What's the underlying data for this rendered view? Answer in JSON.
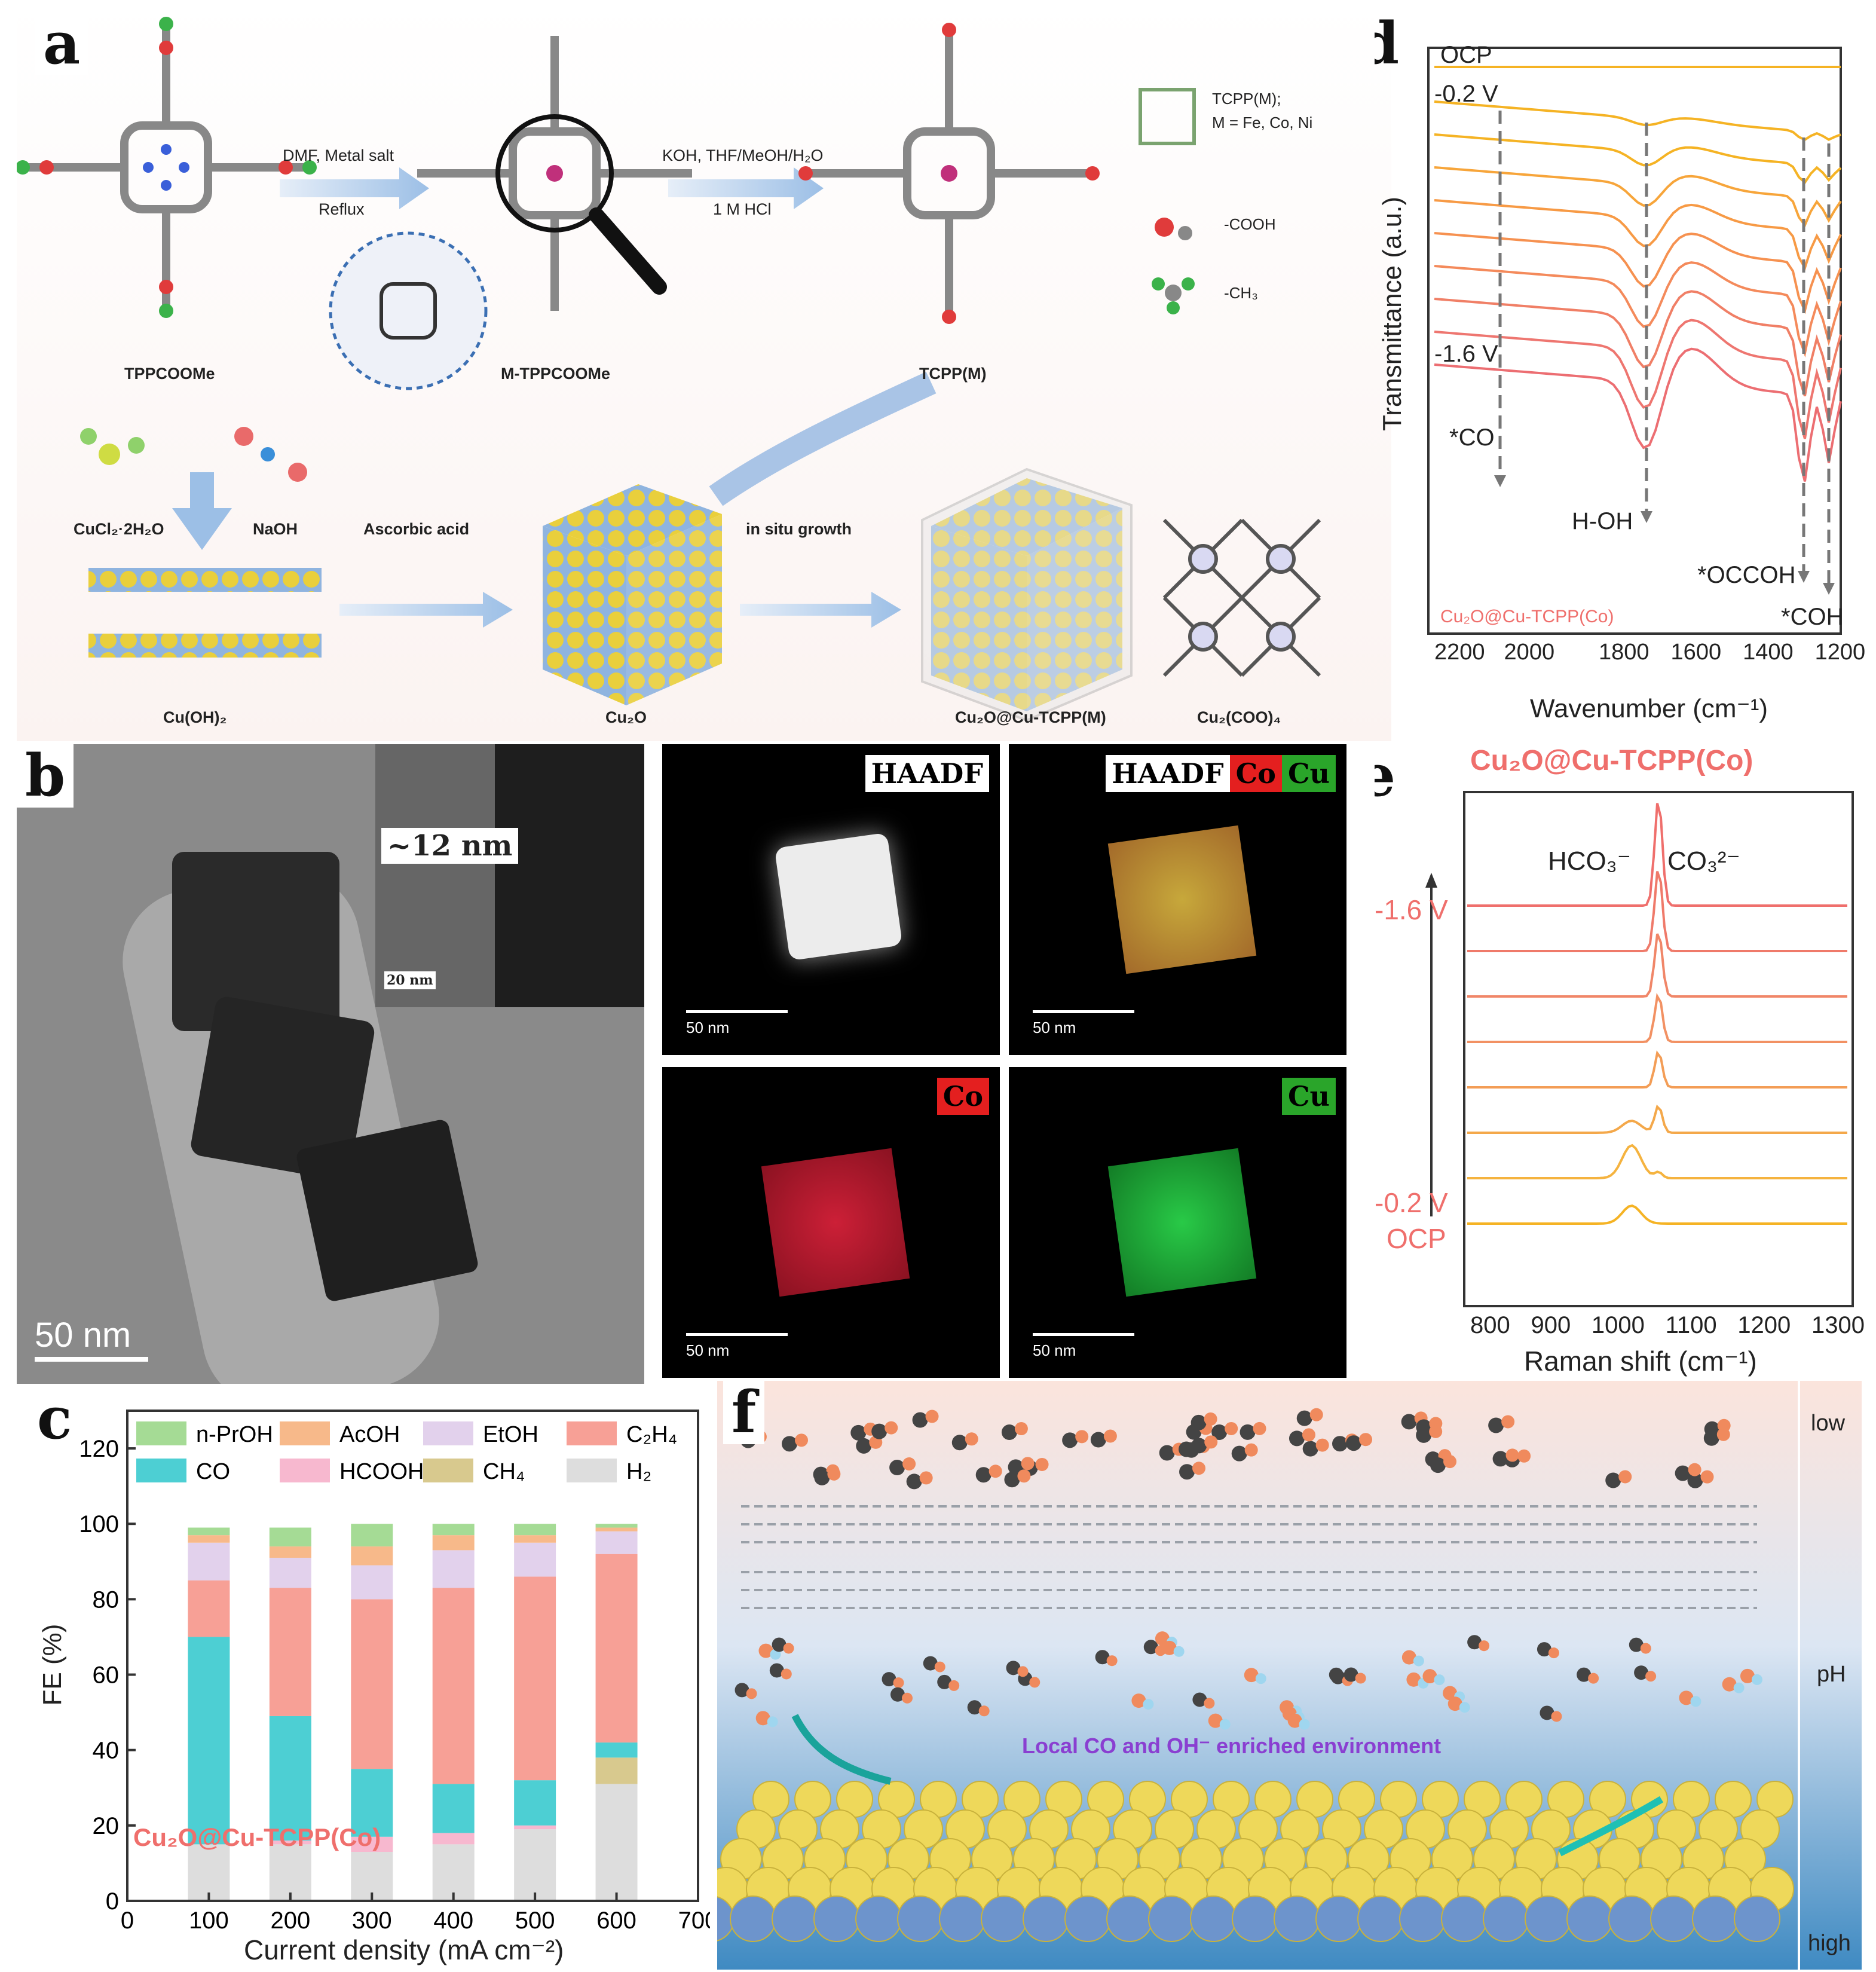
{
  "panel_a": {
    "label": "a",
    "molecules": {
      "tppcoome": "TPPCOOMe",
      "m_tppcoome": "M-TPPCOOMe",
      "tcpp_m": "TCPP(M)",
      "cu_oh2": "Cu(OH)₂",
      "cu2o": "Cu₂O",
      "cu2o_cu_tcpp": "Cu₂O@Cu-TCPP(M)",
      "cu2_coo4": "Cu₂(COO)₄"
    },
    "arrows": {
      "step1_top": "DMF,  Metal salt",
      "step1_bottom": "Reflux",
      "step2_top": "KOH, THF/MeOH/H₂O",
      "step2_bottom": "1 M HCl",
      "step3": "Ascorbic acid",
      "step4": "in situ growth"
    },
    "reagents": {
      "cucl2": "CuCl₂·2H₂O",
      "naoh": "NaOH"
    },
    "legend": {
      "tcpp_line1": "TCPP(M);",
      "tcpp_line2": "M = Fe, Co, Ni",
      "cooh": "-COOH",
      "ch3": "-CH₃"
    }
  },
  "panel_b": {
    "label": "b",
    "shell_thickness": "~12 nm",
    "inset_scale": "20 nm",
    "main_scale": "50 nm",
    "maps": [
      {
        "tags": [
          "HAADF"
        ],
        "scale": "50 nm"
      },
      {
        "tags": [
          "HAADF",
          "Co",
          "Cu"
        ],
        "scale": "50 nm"
      },
      {
        "tags": [
          "Co"
        ],
        "scale": "50 nm"
      },
      {
        "tags": [
          "Cu"
        ],
        "scale": "50 nm"
      }
    ]
  },
  "panel_c": {
    "label": "c",
    "sample": "Cu₂O@Cu-TCPP(Co)",
    "chart_data": {
      "type": "bar",
      "stacked": true,
      "xlabel": "Current density (mA cm⁻²)",
      "ylabel": "FE (%)",
      "xlim": [
        0,
        700
      ],
      "ylim": [
        0,
        130
      ],
      "x_ticks": [
        0,
        100,
        200,
        300,
        400,
        500,
        600,
        700
      ],
      "y_ticks": [
        0,
        20,
        40,
        60,
        80,
        100,
        120
      ],
      "categories": [
        100,
        200,
        300,
        400,
        500,
        600
      ],
      "series": [
        {
          "name": "H₂",
          "color": "#dddddd",
          "values": [
            15,
            15,
            13,
            15,
            19,
            31
          ]
        },
        {
          "name": "CH₄",
          "color": "#d8c98e",
          "values": [
            0,
            0,
            0,
            0,
            0,
            7
          ]
        },
        {
          "name": "HCOOH",
          "color": "#f7b8cf",
          "values": [
            0,
            1,
            4,
            3,
            1,
            0
          ]
        },
        {
          "name": "CO",
          "color": "#4dcfd3",
          "values": [
            55,
            33,
            18,
            13,
            12,
            4
          ]
        },
        {
          "name": "C₂H₄",
          "color": "#f7a096",
          "values": [
            15,
            34,
            45,
            52,
            54,
            50
          ]
        },
        {
          "name": "EtOH",
          "color": "#e2d1ec",
          "values": [
            10,
            8,
            9,
            10,
            9,
            6
          ]
        },
        {
          "name": "AcOH",
          "color": "#f7b98a",
          "values": [
            2,
            3,
            5,
            4,
            2,
            1
          ]
        },
        {
          "name": "n-PrOH",
          "color": "#a5db95",
          "values": [
            2,
            5,
            6,
            3,
            3,
            1
          ]
        }
      ]
    }
  },
  "panel_d": {
    "label": "d",
    "xlabel": "Wavenumber (cm⁻¹)",
    "ylabel": "Transmittance (a.u.)",
    "x_ticks_left": [
      "2200",
      "2000"
    ],
    "x_ticks_right": [
      "1800",
      "1600",
      "1400",
      "1200"
    ],
    "ocp": "OCP",
    "v_top": "-0.2 V",
    "v_bottom": "-1.6 V",
    "peaks": {
      "co": "*CO",
      "hoh": "H-OH",
      "occoh": "*OCCOH",
      "coh": "*COH"
    },
    "sample": "Cu₂O@Cu-TCPP(Co)"
  },
  "panel_e": {
    "label": "e",
    "title": "Cu₂O@Cu-TCPP(Co)",
    "xlabel": "Raman shift (cm⁻¹)",
    "x_ticks": [
      "800",
      "900",
      "1000",
      "1100",
      "1200",
      "1300"
    ],
    "hco3": "HCO₃⁻",
    "co3": "CO₃²⁻",
    "v_top": "-1.6 V",
    "v_bottom": "-0.2 V",
    "ocp": "OCP"
  },
  "panel_f": {
    "label": "f",
    "environment": "Local CO and OH⁻ enriched environment",
    "ph_low": "low",
    "ph_mid": "pH",
    "ph_high": "high"
  }
}
